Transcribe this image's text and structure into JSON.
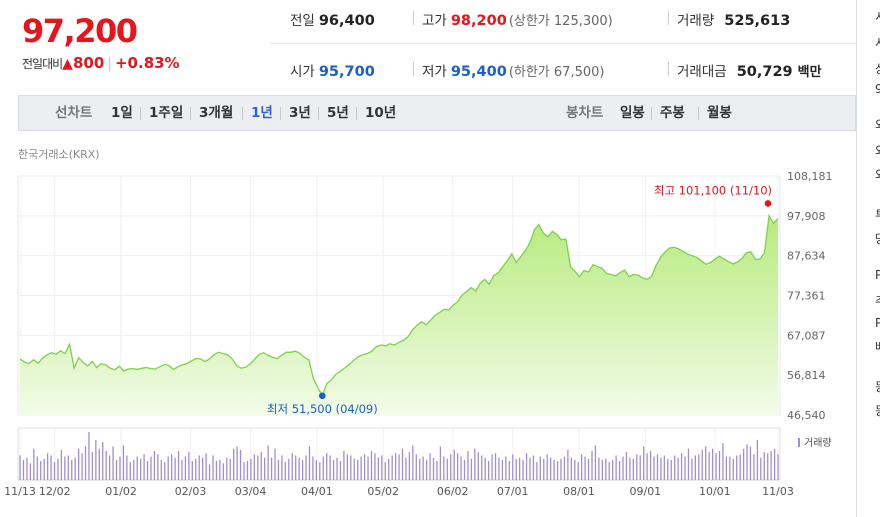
{
  "quote": {
    "price": "97,200",
    "change_label": "전일대비",
    "change_arrow": "▲",
    "change_amount": "800",
    "change_pct": "+0.83%"
  },
  "summary": {
    "prev_close": {
      "label": "전일",
      "value": "96,400"
    },
    "high": {
      "label": "고가",
      "value": "98,200",
      "sub_label": "(상한가 125,300)"
    },
    "volume": {
      "label": "거래량",
      "value": "525,613"
    },
    "open": {
      "label": "시가",
      "value": "95,700"
    },
    "low": {
      "label": "저가",
      "value": "95,400",
      "sub_label": "(하한가 67,500)"
    },
    "trade_value": {
      "label": "거래대금",
      "value": "50,729",
      "unit": "백만"
    }
  },
  "tabs": {
    "line_chart_label": "선차트",
    "periods": [
      "1일",
      "1주일",
      "3개월",
      "1년",
      "3년",
      "5년",
      "10년"
    ],
    "active_period": "1년",
    "candle_label": "봉차트",
    "candles": [
      "일봉",
      "주봉",
      "월봉"
    ]
  },
  "source": "한국거래소(KRX)",
  "chart_data": {
    "type": "area",
    "y_ticks": [
      "108,181",
      "97,908",
      "87,634",
      "77,361",
      "67,087",
      "56,814",
      "46,540"
    ],
    "ylim": [
      46540,
      108181
    ],
    "x_ticks": [
      "11/13",
      "12/02",
      "01/02",
      "02/03",
      "03/04",
      "04/01",
      "05/02",
      "06/02",
      "07/01",
      "08/01",
      "09/01",
      "10/01",
      "11/03"
    ],
    "max_annotation": "최고 101,100 (11/10)",
    "min_annotation": "최저 51,500 (04/09)",
    "max_value": 101100,
    "min_value": 51500,
    "price_series": [
      61000,
      60200,
      59800,
      60800,
      59900,
      61200,
      62100,
      62600,
      62200,
      63100,
      62400,
      64800,
      58600,
      61300,
      60100,
      59200,
      60400,
      58800,
      59800,
      59500,
      58600,
      58200,
      59100,
      57900,
      58400,
      58500,
      58300,
      58600,
      58800,
      58500,
      58400,
      59000,
      59600,
      59300,
      58300,
      59000,
      59500,
      59800,
      60500,
      61100,
      61000,
      60300,
      61000,
      62100,
      62700,
      62400,
      62100,
      61000,
      59300,
      58600,
      58900,
      59700,
      60900,
      62200,
      62600,
      61900,
      61400,
      61100,
      62000,
      62700,
      62700,
      63000,
      62500,
      61400,
      60800,
      56000,
      53600,
      51500,
      54600,
      55600,
      57000,
      57800,
      58700,
      59600,
      60700,
      61600,
      62100,
      62400,
      63000,
      64200,
      64600,
      64400,
      64900,
      64600,
      65300,
      65800,
      66700,
      68500,
      69700,
      70600,
      69800,
      71000,
      72200,
      73000,
      73800,
      73600,
      74800,
      75800,
      77500,
      78400,
      79400,
      78500,
      80500,
      81500,
      80300,
      82500,
      83200,
      84800,
      86300,
      88100,
      85900,
      87400,
      88900,
      90900,
      94300,
      95700,
      93400,
      92500,
      93900,
      93100,
      91700,
      91900,
      84800,
      83600,
      82200,
      83800,
      83400,
      85300,
      84800,
      84400,
      83000,
      82800,
      82400,
      83300,
      83900,
      82200,
      82800,
      82600,
      81900,
      81500,
      82300,
      85200,
      87300,
      88600,
      89600,
      89800,
      89400,
      88700,
      88000,
      87600,
      87200,
      86300,
      85400,
      85800,
      86700,
      87500,
      86800,
      86100,
      85500,
      86000,
      86900,
      88400,
      88600,
      86700,
      86700,
      88400,
      97900,
      96000,
      97200
    ],
    "volume_series": [
      22,
      18,
      20,
      15,
      28,
      21,
      17,
      19,
      24,
      22,
      16,
      19,
      27,
      21,
      22,
      18,
      20,
      28,
      24,
      30,
      43,
      25,
      36,
      28,
      34,
      26,
      22,
      30,
      18,
      21,
      31,
      22,
      16,
      18,
      21,
      19,
      23,
      17,
      21,
      26,
      23,
      18,
      16,
      21,
      23,
      20,
      26,
      18,
      21,
      25,
      17,
      19,
      22,
      20,
      24,
      14,
      22,
      17,
      18,
      15,
      20,
      19,
      28,
      30,
      27,
      16,
      17,
      19,
      23,
      22,
      25,
      20,
      31,
      20,
      28,
      18,
      22,
      16,
      19,
      24,
      22,
      20,
      18,
      22,
      30,
      21,
      18,
      16,
      21,
      24,
      22,
      18,
      20,
      17,
      26,
      23,
      22,
      19,
      18,
      21,
      23,
      21,
      26,
      24,
      20,
      22,
      16,
      19,
      22,
      24,
      23,
      28,
      20,
      25,
      31,
      23,
      19,
      21,
      18,
      24,
      20,
      17,
      30,
      21,
      19,
      23,
      27,
      24,
      21,
      18,
      26,
      19,
      28,
      25,
      22,
      20,
      17,
      23,
      24,
      20,
      18,
      21,
      17,
      23,
      19,
      20,
      18,
      24,
      20,
      22,
      16,
      21,
      19,
      23,
      20,
      18,
      17,
      19,
      21,
      27,
      20,
      18,
      16,
      23,
      21,
      19,
      26,
      31,
      20,
      18,
      19,
      16,
      18,
      22,
      17,
      21,
      25,
      20,
      19,
      23,
      22,
      30,
      24,
      26,
      21,
      23,
      20,
      22,
      19,
      18,
      22,
      20,
      24,
      21,
      28,
      19,
      22,
      23,
      27,
      30,
      25,
      28,
      24,
      26,
      33,
      21,
      21,
      19,
      22,
      23,
      28,
      32,
      30,
      23,
      36,
      20,
      25,
      24,
      26,
      28,
      23
    ],
    "volume_legend": "거래량",
    "colors": {
      "line": "#7fd04a",
      "area_top": "#b7eb7e",
      "area_bottom": "#f2fbe8",
      "max_marker": "#e4151b",
      "min_marker": "#1a5fd0",
      "volume": "#a08fcf"
    },
    "grid": true
  },
  "sidebar": {
    "letters": [
      "시",
      "시",
      "상",
      "9",
      "외",
      "외",
      "외",
      "투",
      "당",
      "P",
      "추",
      "P",
      "배",
      "동",
      "동"
    ]
  }
}
